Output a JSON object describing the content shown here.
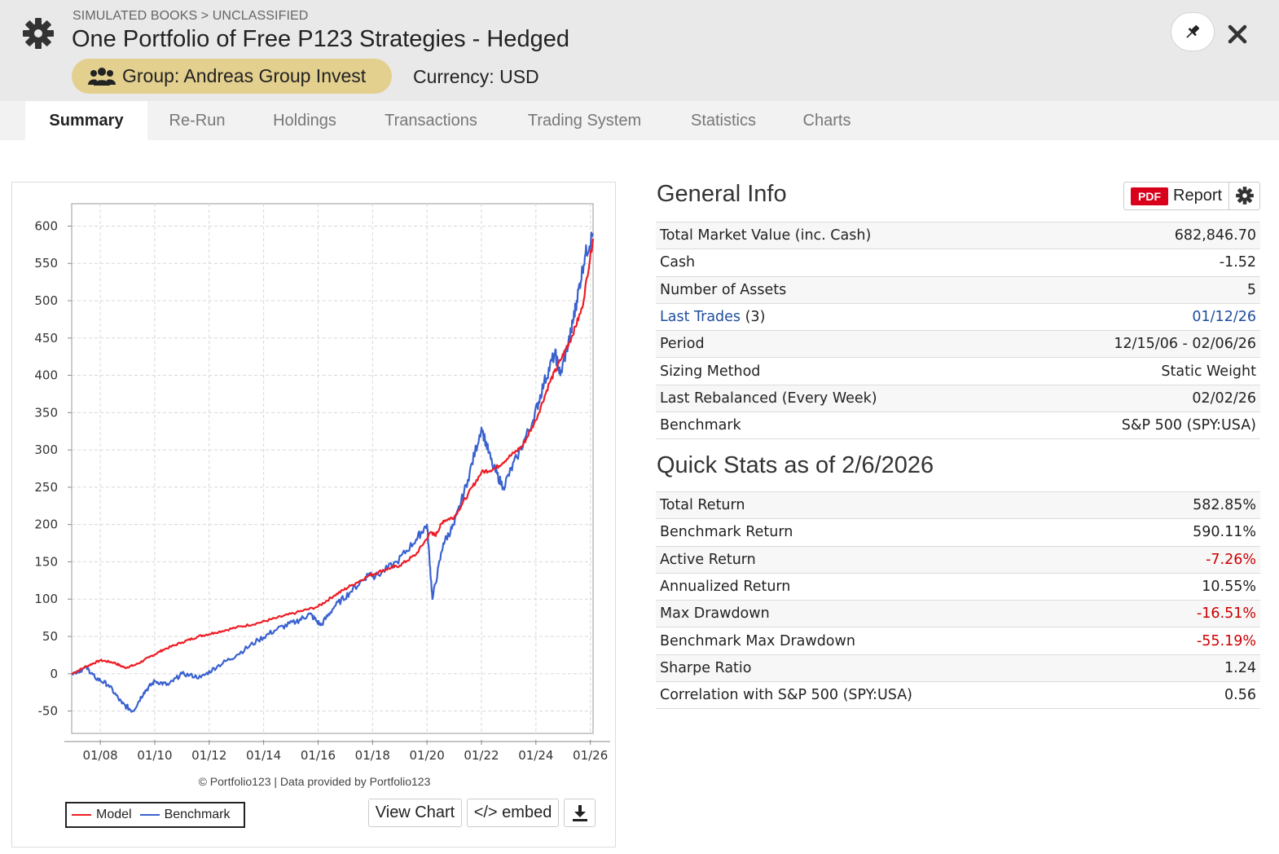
{
  "header": {
    "breadcrumb": "SIMULATED BOOKS > UNCLASSIFIED",
    "title": "One Portfolio of Free P123 Strategies - Hedged",
    "group_label": "Group: Andreas Group Invest",
    "currency_label": "Currency: USD"
  },
  "tabs": [
    "Summary",
    "Re-Run",
    "Holdings",
    "Transactions",
    "Trading System",
    "Statistics",
    "Charts"
  ],
  "active_tab": "Summary",
  "general_info": {
    "title": "General Info",
    "report_pdf": "PDF",
    "report_label": "Report",
    "rows": [
      {
        "label": "Total Market Value (inc. Cash)",
        "value": "682,846.70"
      },
      {
        "label": "Cash",
        "value": "-1.52"
      },
      {
        "label": "Number of Assets",
        "value": "5"
      },
      {
        "label": "Last Trades",
        "label_suffix": " (3)",
        "value": "01/12/26"
      },
      {
        "label": "Period",
        "value": "12/15/06 - 02/06/26"
      },
      {
        "label": "Sizing Method",
        "value": "Static Weight"
      },
      {
        "label": "Last Rebalanced (Every Week)",
        "value": "02/02/26"
      },
      {
        "label": "Benchmark",
        "value": "S&P 500 (SPY:USA)"
      }
    ]
  },
  "quick_stats": {
    "title": "Quick Stats as of 2/6/2026",
    "rows": [
      {
        "label": "Total Return",
        "value": "582.85%"
      },
      {
        "label": "Benchmark Return",
        "value": "590.11%"
      },
      {
        "label": "Active Return",
        "value": "-7.26%"
      },
      {
        "label": "Annualized Return",
        "value": "10.55%"
      },
      {
        "label": "Max Drawdown",
        "value": "-16.51%"
      },
      {
        "label": "Benchmark Max Drawdown",
        "value": "-55.19%"
      },
      {
        "label": "Sharpe Ratio",
        "value": "1.24"
      },
      {
        "label": "Correlation with S&P 500 (SPY:USA)",
        "value": "0.56"
      }
    ]
  },
  "chart_buttons": {
    "view_chart": "View Chart",
    "embed": "</> embed"
  },
  "colors": {
    "model": "#ee1c25",
    "benchmark": "#3a62cf",
    "badge": "#e3cf8e",
    "negative": "#cc0000",
    "link": "#1f4e9e"
  },
  "chart_data": {
    "type": "line",
    "credit": "© Portfolio123 | Data provided by Portfolio123",
    "x_tick_labels": [
      "01/08",
      "01/10",
      "01/12",
      "01/14",
      "01/16",
      "01/18",
      "01/20",
      "01/22",
      "01/24",
      "01/26"
    ],
    "y_ticks": [
      -50,
      0,
      50,
      100,
      150,
      200,
      250,
      300,
      350,
      400,
      450,
      500,
      550,
      600
    ],
    "ylim": [
      -80,
      630
    ],
    "xlim": [
      2006.95,
      2026.1
    ],
    "legend": "bottom-left",
    "grid": true,
    "series": [
      {
        "name": "Model",
        "x": [
          2006.96,
          2007.5,
          2008.0,
          2008.5,
          2008.9,
          2009.3,
          2009.8,
          2010.3,
          2011.0,
          2011.6,
          2012.2,
          2013.0,
          2013.8,
          2014.5,
          2015.2,
          2016.0,
          2016.6,
          2017.2,
          2017.9,
          2018.5,
          2019.0,
          2019.6,
          2020.15,
          2020.3,
          2020.6,
          2021.0,
          2021.5,
          2022.0,
          2022.5,
          2023.0,
          2023.5,
          2024.0,
          2024.5,
          2024.9,
          2025.3,
          2025.7,
          2026.1
        ],
        "y": [
          0,
          10,
          18,
          15,
          8,
          12,
          22,
          32,
          42,
          50,
          55,
          62,
          68,
          75,
          82,
          90,
          105,
          118,
          132,
          140,
          145,
          160,
          190,
          185,
          205,
          210,
          240,
          270,
          275,
          290,
          305,
          340,
          390,
          420,
          450,
          490,
          583
        ]
      },
      {
        "name": "Benchmark",
        "x": [
          2006.96,
          2007.5,
          2007.8,
          2008.3,
          2008.8,
          2009.2,
          2009.6,
          2010.0,
          2010.5,
          2011.0,
          2011.7,
          2012.3,
          2013.0,
          2013.8,
          2014.5,
          2015.2,
          2015.7,
          2016.1,
          2016.6,
          2017.2,
          2017.9,
          2018.1,
          2018.9,
          2019.6,
          2020.0,
          2020.2,
          2020.6,
          2021.0,
          2021.5,
          2022.0,
          2022.4,
          2022.8,
          2023.3,
          2023.9,
          2024.3,
          2024.7,
          2024.9,
          2025.3,
          2025.5,
          2025.8,
          2026.1
        ],
        "y": [
          0,
          8,
          -5,
          -15,
          -40,
          -50,
          -25,
          -10,
          -15,
          0,
          -5,
          10,
          25,
          45,
          60,
          70,
          80,
          65,
          90,
          110,
          135,
          130,
          150,
          180,
          200,
          100,
          175,
          200,
          260,
          330,
          280,
          250,
          290,
          340,
          390,
          430,
          400,
          460,
          500,
          560,
          590
        ]
      }
    ]
  }
}
